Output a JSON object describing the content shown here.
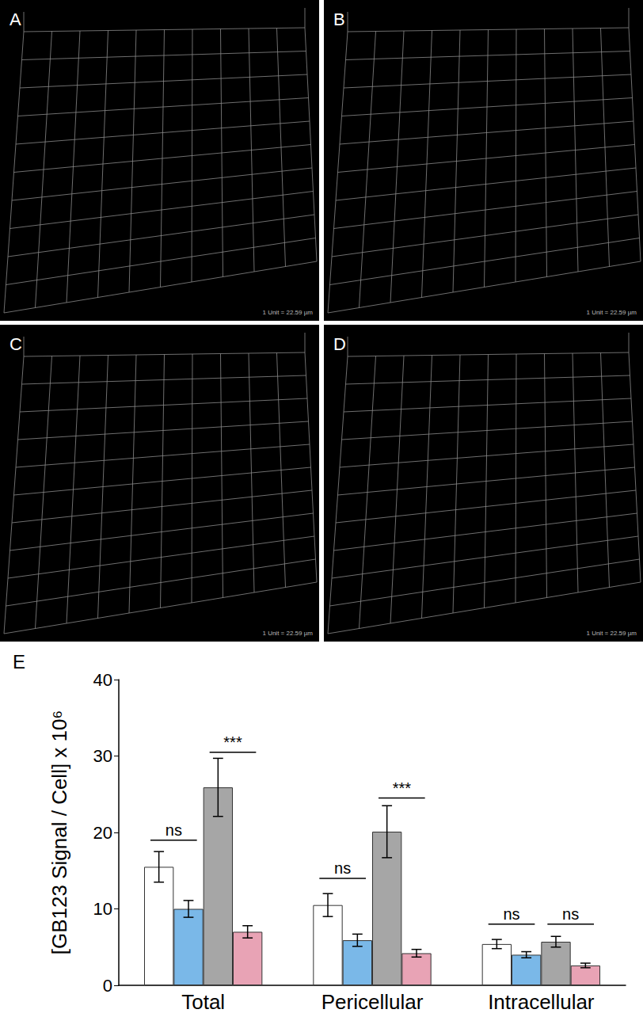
{
  "panels": [
    {
      "label": "A",
      "scale_text": "1 Unit = 22.59 µm"
    },
    {
      "label": "B",
      "scale_text": "1 Unit = 22.59 µm"
    },
    {
      "label": "C",
      "scale_text": "1 Unit = 22.59 µm"
    },
    {
      "label": "D",
      "scale_text": "1 Unit = 22.59 µm"
    }
  ],
  "chart_data": {
    "type": "bar",
    "panel_label": "E",
    "ylabel": "[GB123 Signal / Cell] x 10⁶",
    "categories": [
      "Total",
      "Pericellular",
      "Intracellular"
    ],
    "series": [
      {
        "color": "#ffffff",
        "values": [
          15.5,
          10.5,
          5.4
        ],
        "errors": [
          2.0,
          1.5,
          0.6
        ]
      },
      {
        "color": "#7ab8e8",
        "values": [
          10.0,
          5.9,
          4.0
        ],
        "errors": [
          1.1,
          0.8,
          0.4
        ]
      },
      {
        "color": "#a6a6a6",
        "values": [
          25.9,
          20.1,
          5.7
        ],
        "errors": [
          3.8,
          3.4,
          0.7
        ]
      },
      {
        "color": "#e8a3b5",
        "values": [
          7.0,
          4.2,
          2.6
        ],
        "errors": [
          0.8,
          0.5,
          0.3
        ]
      }
    ],
    "ylim": [
      0,
      40
    ],
    "yticks": [
      0,
      10,
      20,
      30,
      40
    ],
    "grid": false,
    "annotations": [
      {
        "category": "Total",
        "between": [
          0,
          1
        ],
        "y": 19,
        "text": "ns"
      },
      {
        "category": "Total",
        "between": [
          2,
          3
        ],
        "y": 30.5,
        "text": "***"
      },
      {
        "category": "Pericellular",
        "between": [
          0,
          1
        ],
        "y": 14,
        "text": "ns"
      },
      {
        "category": "Pericellular",
        "between": [
          2,
          3
        ],
        "y": 24.5,
        "text": "***"
      },
      {
        "category": "Intracellular",
        "between": [
          0,
          1
        ],
        "y": 8,
        "text": "ns"
      },
      {
        "category": "Intracellular",
        "between": [
          2,
          3
        ],
        "y": 8,
        "text": "ns"
      }
    ]
  }
}
